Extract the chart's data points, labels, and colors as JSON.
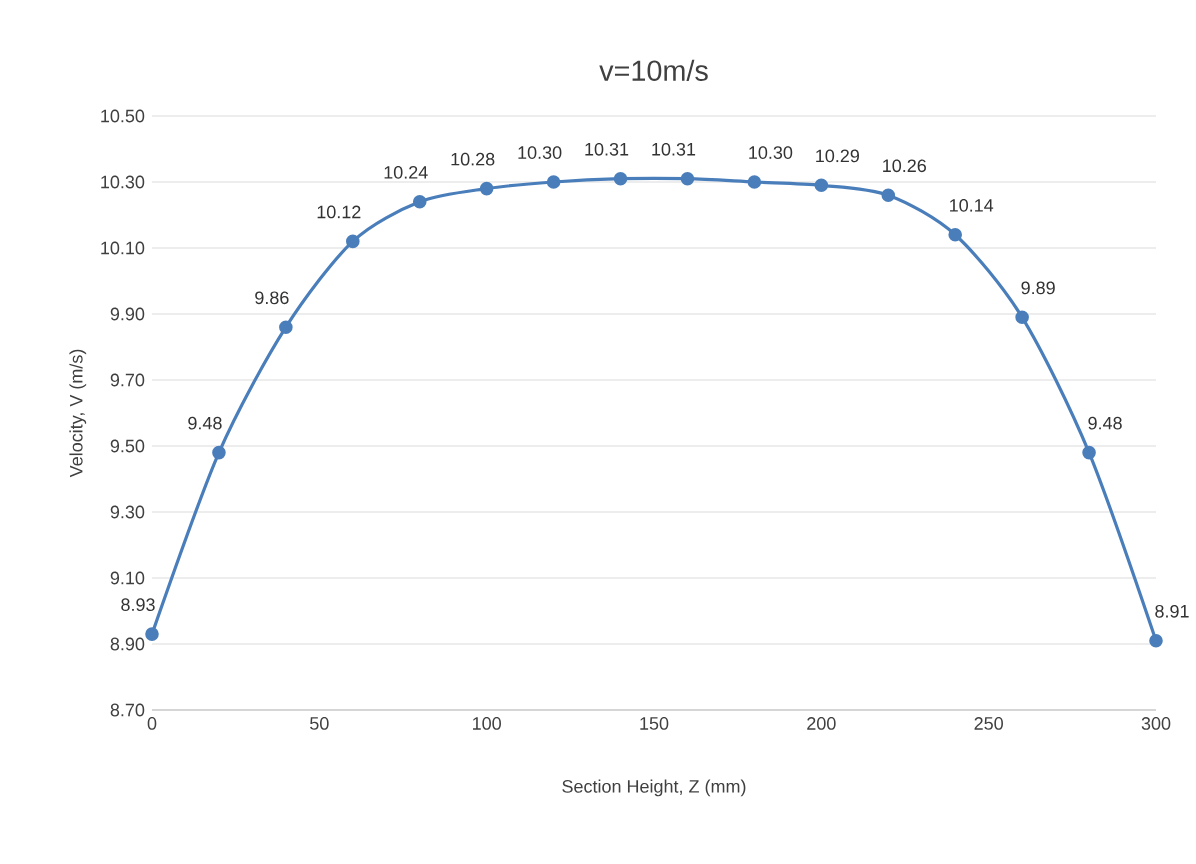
{
  "chart_data": {
    "type": "line",
    "title": "v=10m/s",
    "xlabel": "Section Height, Z (mm)",
    "ylabel": "Velocity, V (m/s)",
    "x": [
      0,
      20,
      40,
      60,
      80,
      100,
      120,
      140,
      160,
      180,
      200,
      220,
      240,
      260,
      280,
      300
    ],
    "series": [
      {
        "color": "#4a7ebb",
        "values": [
          8.93,
          9.48,
          9.86,
          10.12,
          10.24,
          10.28,
          10.3,
          10.31,
          10.31,
          10.3,
          10.29,
          10.26,
          10.14,
          9.89,
          9.48,
          8.91
        ],
        "value_labels": [
          "8.93",
          "9.48",
          "9.86",
          "10.12",
          "10.24",
          "10.28",
          "10.30",
          "10.31",
          "10.31",
          "10.30",
          "10.29",
          "10.26",
          "10.14",
          "9.89",
          "9.48",
          "8.91"
        ]
      }
    ],
    "xlim": [
      0,
      300
    ],
    "xticks": [
      0,
      50,
      100,
      150,
      200,
      250,
      300
    ],
    "ylim": [
      8.7,
      10.5
    ],
    "yticks": [
      {
        "value": 8.7,
        "label": "8.70"
      },
      {
        "value": 8.9,
        "label": "8.90"
      },
      {
        "value": 9.1,
        "label": "9.10"
      },
      {
        "value": 9.3,
        "label": "9.30"
      },
      {
        "value": 9.5,
        "label": "9.50"
      },
      {
        "value": 9.7,
        "label": "9.70"
      },
      {
        "value": 9.9,
        "label": "9.90"
      },
      {
        "value": 10.1,
        "label": "10.10"
      },
      {
        "value": 10.3,
        "label": "10.30"
      },
      {
        "value": 10.5,
        "label": "10.50"
      }
    ],
    "grid": "y",
    "marker": "circle",
    "line_style": "solid"
  }
}
